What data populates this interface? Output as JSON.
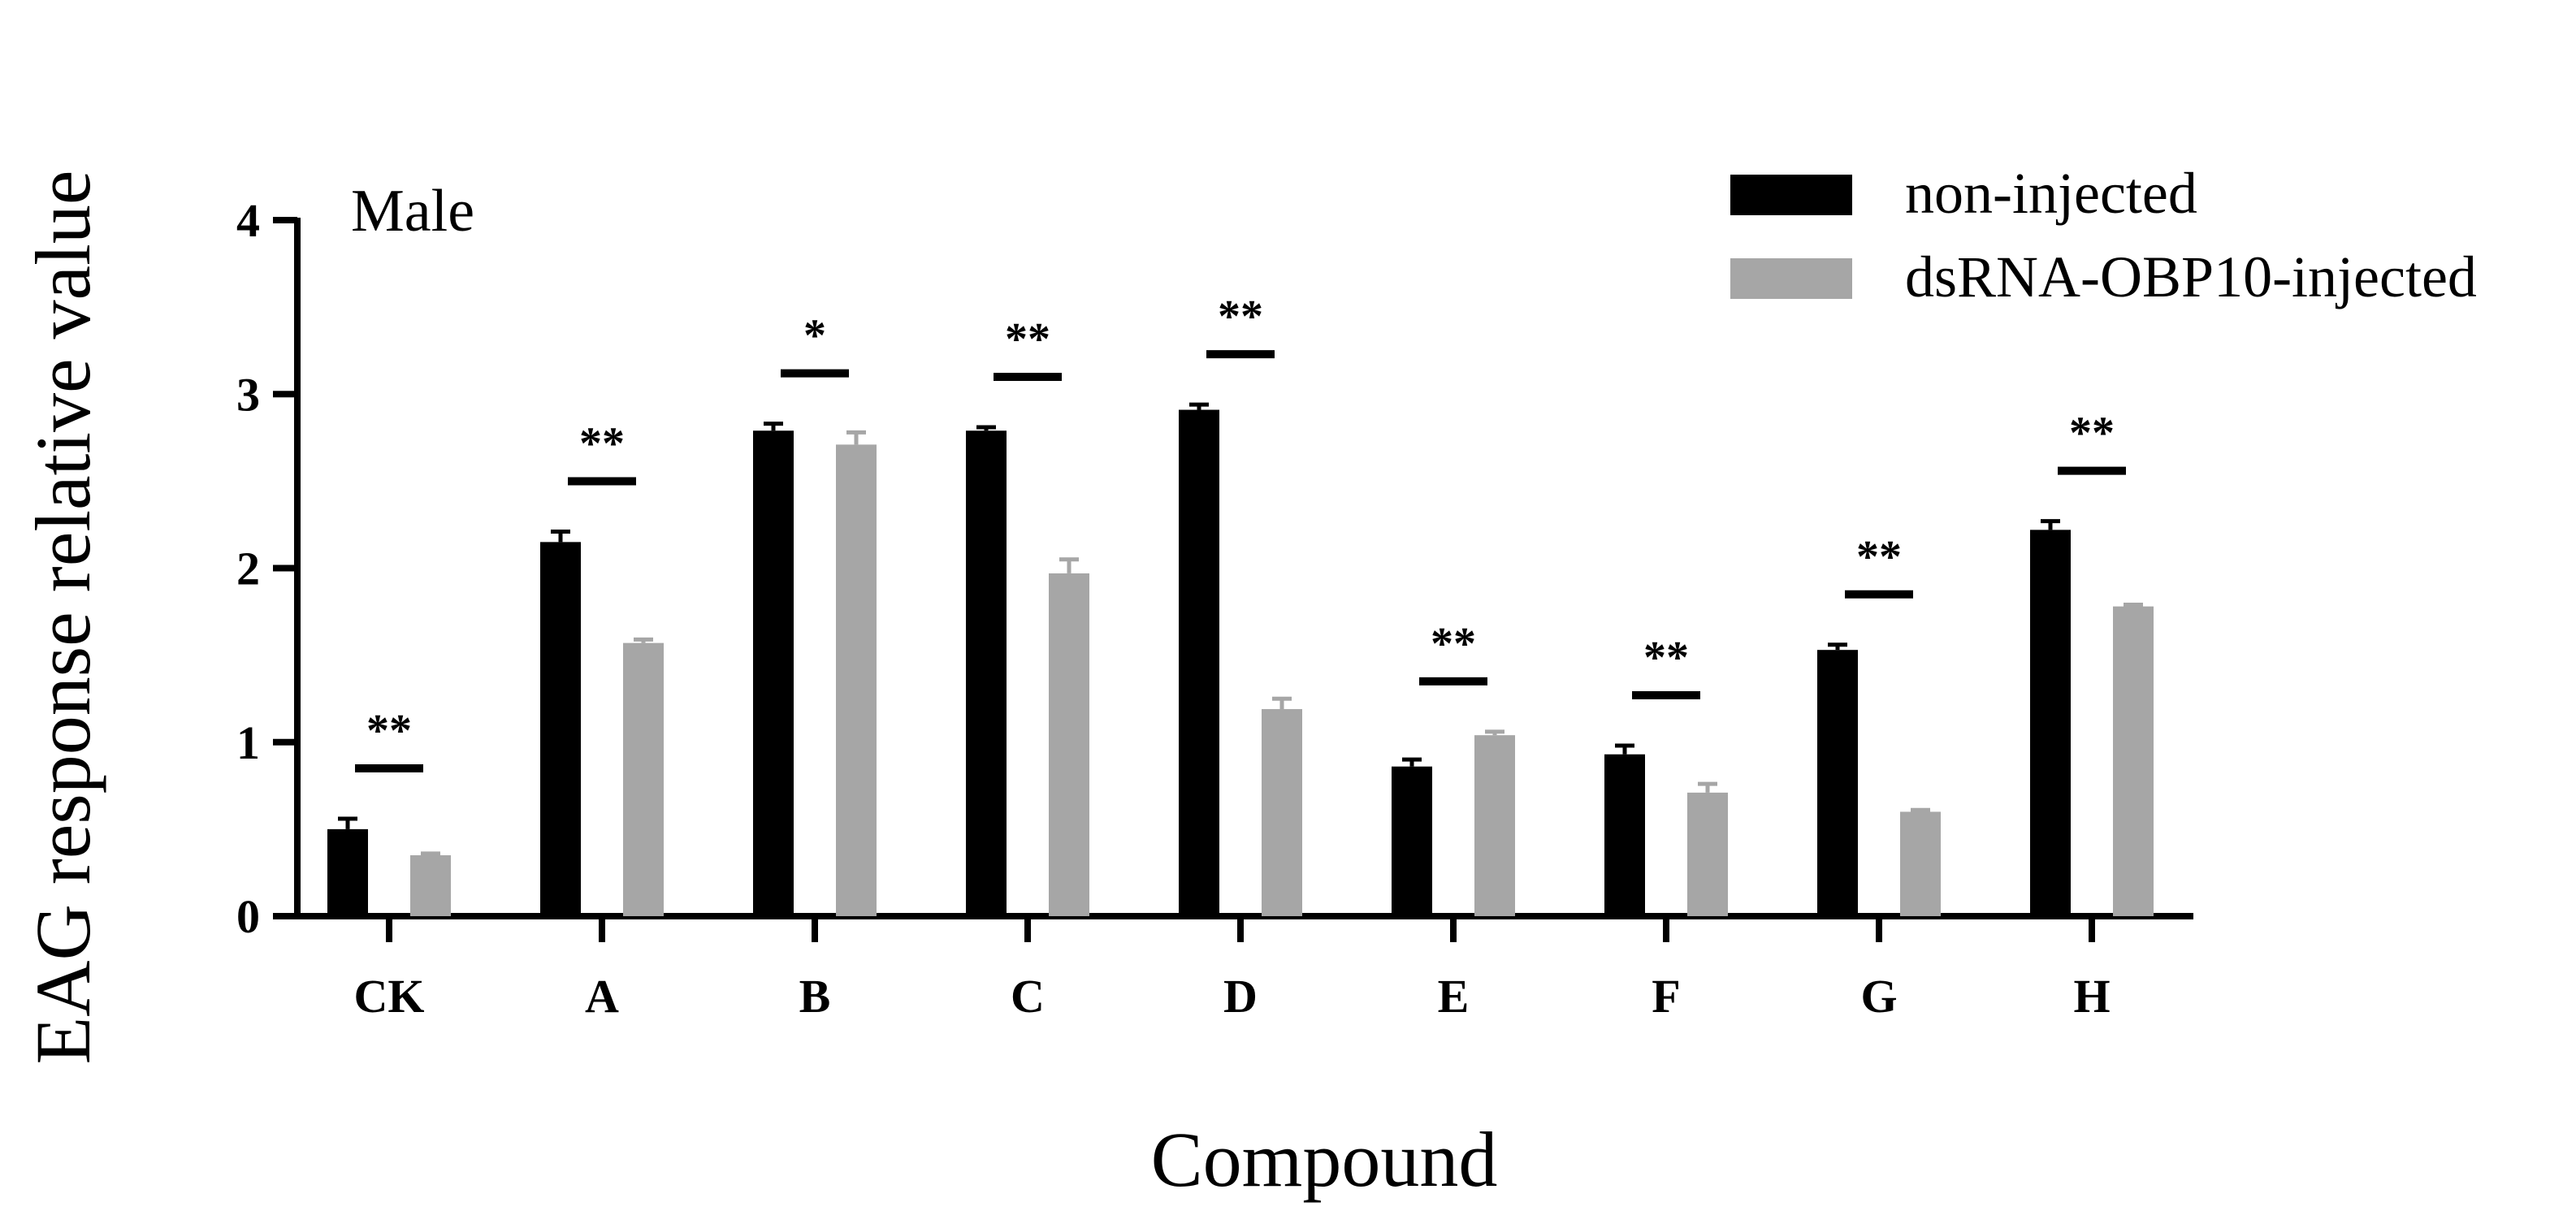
{
  "chart_data": {
    "type": "bar",
    "panel_label": "Male",
    "xlabel": "Compound",
    "ylabel": "EAG response relative value",
    "ylim": [
      0,
      4
    ],
    "yticks": [
      "0",
      "1",
      "2",
      "3",
      "4"
    ],
    "categories": [
      "CK",
      "A",
      "B",
      "C",
      "D",
      "E",
      "F",
      "G",
      "H"
    ],
    "series": [
      {
        "name": "non-injected",
        "color": "#000000",
        "values": [
          0.5,
          2.15,
          2.79,
          2.79,
          2.91,
          0.86,
          0.93,
          1.53,
          2.22
        ],
        "errors": [
          0.06,
          0.06,
          0.04,
          0.02,
          0.03,
          0.04,
          0.05,
          0.03,
          0.05
        ]
      },
      {
        "name": "dsRNA-OBP10-injected",
        "color": "#a6a6a6",
        "values": [
          0.35,
          1.57,
          2.71,
          1.97,
          1.19,
          1.04,
          0.71,
          0.6,
          1.78
        ],
        "errors": [
          0.01,
          0.02,
          0.07,
          0.08,
          0.06,
          0.02,
          0.05,
          0.01,
          0.01
        ]
      }
    ],
    "significance": [
      "**",
      "**",
      "*",
      "**",
      "**",
      "**",
      "**",
      "**",
      "**"
    ],
    "legend_position": "top-right",
    "grid": false
  }
}
